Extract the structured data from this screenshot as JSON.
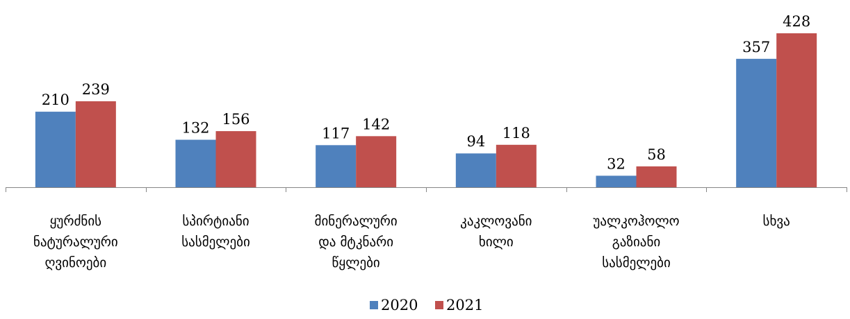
{
  "chart_data": {
    "type": "bar",
    "categories": [
      [
        "ყურძნის",
        "ნატურალური",
        "ღვინოები"
      ],
      [
        "სპირტიანი",
        "სასმელები"
      ],
      [
        "მინერალური",
        "და მტკნარი",
        "წყლები"
      ],
      [
        "კაკლოვანი",
        "ხილი"
      ],
      [
        "უალკოჰოლო",
        "გაზიანი",
        "სასმელები"
      ],
      [
        "სხვა"
      ]
    ],
    "series": [
      {
        "name": "2020",
        "values": [
          210,
          132,
          117,
          94,
          32,
          357
        ],
        "color": "#4F81BD"
      },
      {
        "name": "2021",
        "values": [
          239,
          156,
          142,
          118,
          58,
          428
        ],
        "color": "#C0504D"
      }
    ],
    "ylim": [
      0,
      428
    ],
    "grid": false,
    "legend_position": "bottom-center",
    "title": "",
    "xlabel": "",
    "ylabel": ""
  }
}
